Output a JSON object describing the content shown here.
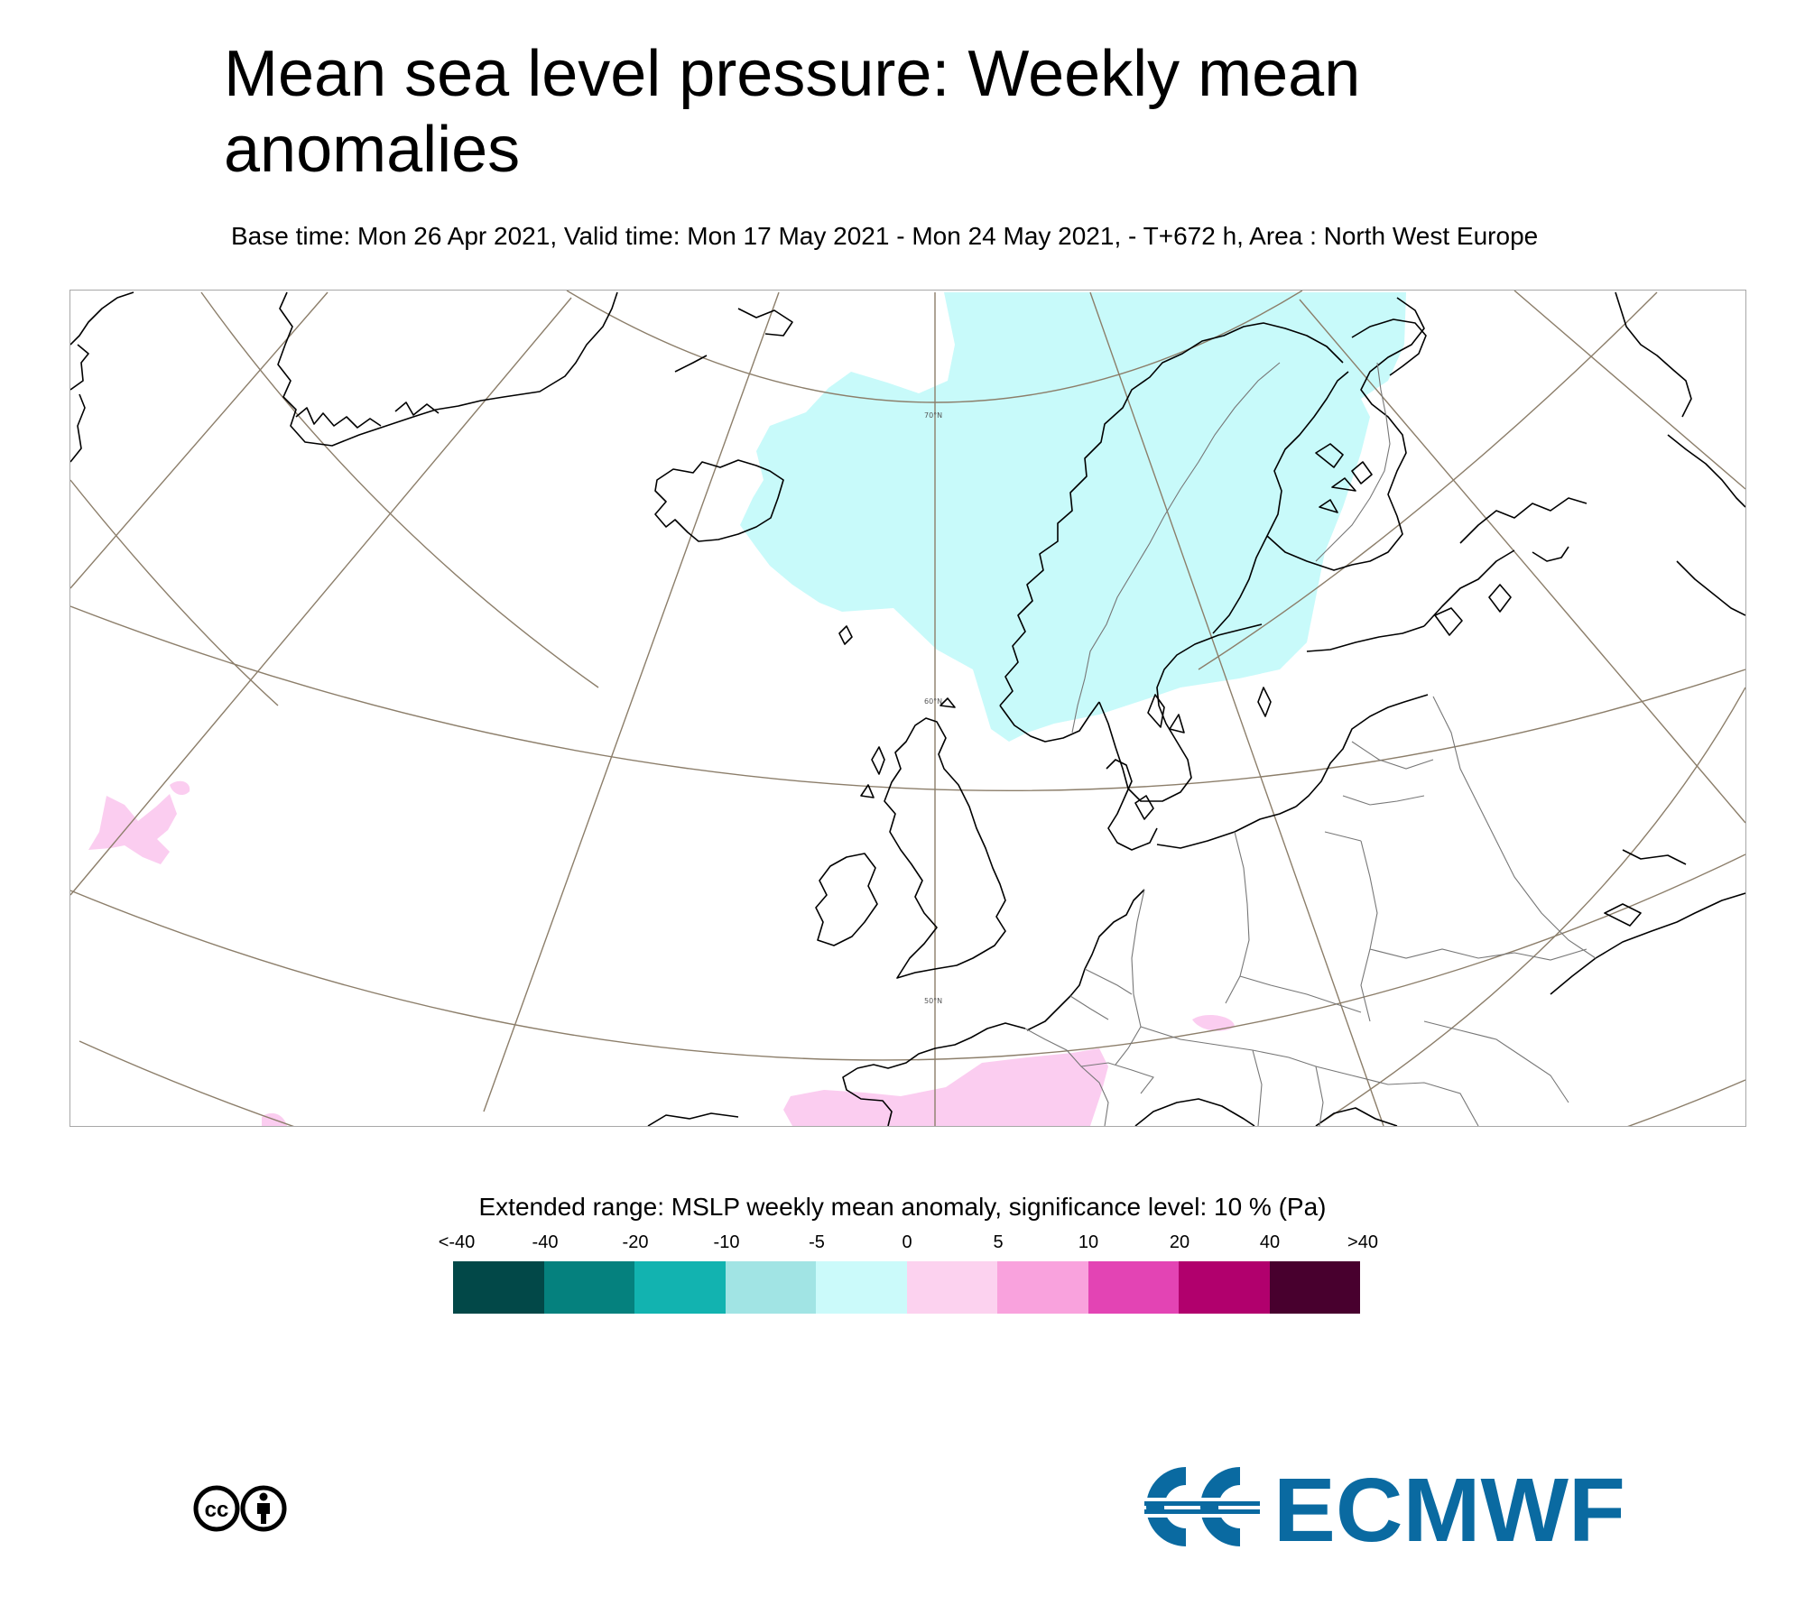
{
  "title": "Mean sea level pressure: Weekly mean anomalies",
  "subtitle": "Base time: Mon 26 Apr 2021, Valid time: Mon 17 May 2021 - Mon 24 May 2021, - T+672 h, Area : North West Europe",
  "map": {
    "area": "North West Europe",
    "latitude_labels": [
      "70°N",
      "60°N",
      "50°N"
    ],
    "colors": {
      "coast": "#000000",
      "graticule": "#8c7e6a",
      "border": "#666666",
      "anomaly_neg_weak": "#c8fafa",
      "anomaly_pos_weak": "#fbcdf0"
    },
    "anomaly_regions": [
      {
        "name": "negative anomaly -5 to 0 Pa over Norwegian Sea and Scandinavia",
        "class": "-5 to 0"
      },
      {
        "name": "positive anomaly 0 to 5 Pa over France",
        "class": "0 to 5"
      },
      {
        "name": "positive anomaly 0 to 5 Pa over western Atlantic",
        "class": "0 to 5"
      }
    ]
  },
  "legend": {
    "title": "Extended range: MSLP weekly mean anomaly, significance level: 10 % (Pa)",
    "ticks": [
      "<-40",
      "-40",
      "-20",
      "-10",
      "-5",
      "0",
      "5",
      "10",
      "20",
      "40",
      ">40"
    ],
    "colors": [
      "#024848",
      "#05817e",
      "#12b3b0",
      "#a1e4e4",
      "#cbfafa",
      "#fcd2ef",
      "#f9a2dd",
      "#e344b4",
      "#b1006d",
      "#48002e"
    ]
  },
  "license_icon": "creative-commons-by-icon",
  "logo": {
    "text": "ECMWF",
    "color": "#0a6aa1"
  }
}
